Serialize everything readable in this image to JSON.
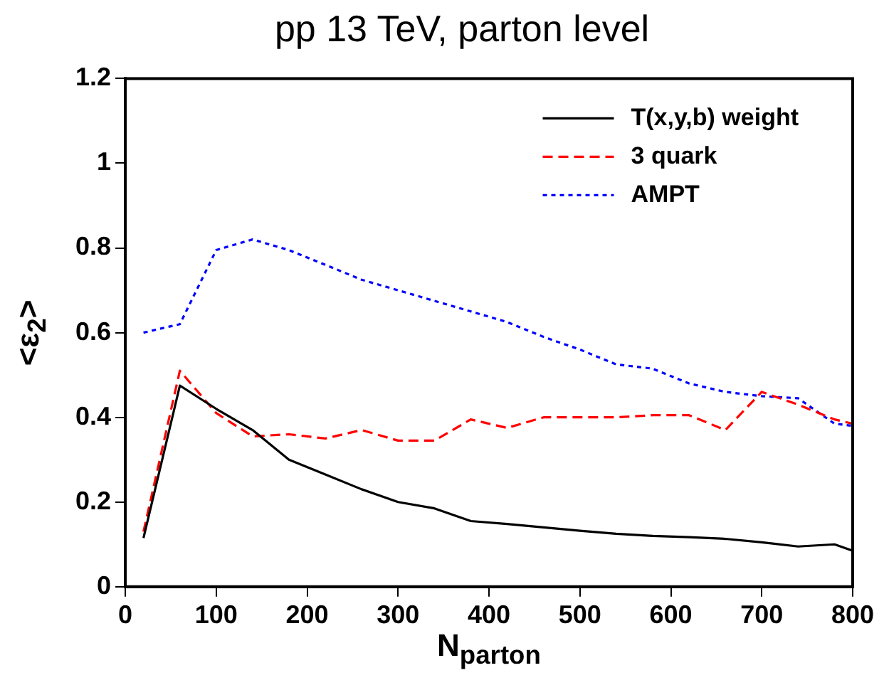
{
  "chart_data": {
    "type": "line",
    "title": "pp 13 TeV, parton level",
    "xlabel": "N$_{parton}$",
    "ylabel": "<ε$_{2}$>",
    "x": [
      20,
      60,
      100,
      140,
      180,
      220,
      260,
      300,
      340,
      380,
      420,
      460,
      500,
      540,
      580,
      620,
      660,
      700,
      740,
      780,
      800
    ],
    "series": [
      {
        "name": "T(x,y,b) weight",
        "color": "#000000",
        "line_style": "solid",
        "values": [
          0.115,
          0.475,
          0.42,
          0.37,
          0.3,
          0.265,
          0.23,
          0.2,
          0.185,
          0.155,
          0.148,
          0.14,
          0.132,
          0.125,
          0.12,
          0.117,
          0.113,
          0.105,
          0.095,
          0.1,
          0.085
        ]
      },
      {
        "name": "3 quark",
        "color": "#ff0000",
        "line_style": "dashed",
        "values": [
          0.13,
          0.51,
          0.41,
          0.355,
          0.36,
          0.35,
          0.37,
          0.345,
          0.345,
          0.395,
          0.375,
          0.4,
          0.4,
          0.4,
          0.405,
          0.405,
          0.37,
          0.46,
          0.43,
          0.395,
          0.385
        ]
      },
      {
        "name": "AMPT",
        "color": "#0000ff",
        "line_style": "dotted",
        "values": [
          0.6,
          0.62,
          0.795,
          0.82,
          0.795,
          0.76,
          0.725,
          0.7,
          0.675,
          0.65,
          0.625,
          0.59,
          0.56,
          0.525,
          0.515,
          0.48,
          0.46,
          0.45,
          0.445,
          0.385,
          0.38
        ]
      }
    ],
    "xlim": [
      0,
      800
    ],
    "xticks": [
      0,
      100,
      200,
      300,
      400,
      500,
      600,
      700,
      800
    ],
    "ylim": [
      0,
      1.2
    ],
    "yticks": [
      0,
      0.2,
      0.4,
      0.6,
      0.8,
      1,
      1.2
    ],
    "legend": "top right",
    "grid": false,
    "marker": "none"
  }
}
